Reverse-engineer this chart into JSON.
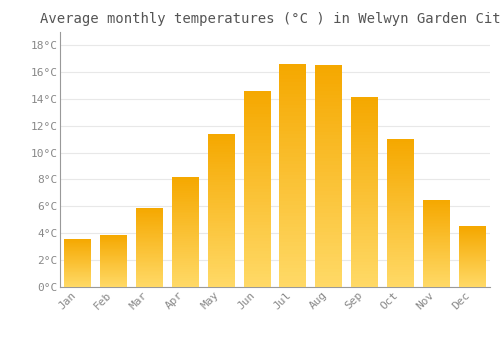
{
  "title": "Average monthly temperatures (°C ) in Welwyn Garden City",
  "months": [
    "Jan",
    "Feb",
    "Mar",
    "Apr",
    "May",
    "Jun",
    "Jul",
    "Aug",
    "Sep",
    "Oct",
    "Nov",
    "Dec"
  ],
  "values": [
    3.6,
    3.9,
    5.9,
    8.2,
    11.4,
    14.6,
    16.6,
    16.5,
    14.1,
    11.0,
    6.5,
    4.5
  ],
  "bar_color_top": "#F5A800",
  "bar_color_bottom": "#FFD966",
  "background_color": "#FFFFFF",
  "grid_color": "#E8E8E8",
  "ytick_labels": [
    "0°C",
    "2°C",
    "4°C",
    "6°C",
    "8°C",
    "10°C",
    "12°C",
    "14°C",
    "16°C",
    "18°C"
  ],
  "ytick_values": [
    0,
    2,
    4,
    6,
    8,
    10,
    12,
    14,
    16,
    18
  ],
  "ylim": [
    0,
    19
  ],
  "title_fontsize": 10,
  "tick_fontsize": 8,
  "title_color": "#555555",
  "tick_color": "#888888"
}
